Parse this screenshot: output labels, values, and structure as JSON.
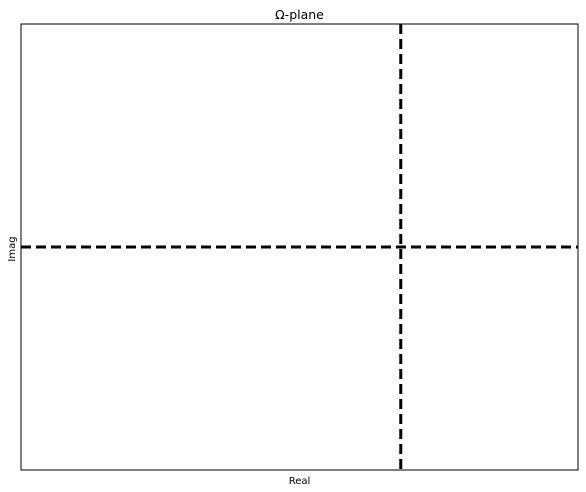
{
  "chart_data": {
    "type": "scatter",
    "title": "Ω-plane",
    "xlabel": "Real",
    "ylabel": "Imag",
    "xticks": [],
    "yticks": [],
    "grid": false,
    "series": [],
    "reference_lines": {
      "vertical_x": 0,
      "horizontal_y": 0,
      "style": "dashed",
      "color": "#000000"
    },
    "xlim": [
      -1.5,
      0.7
    ],
    "ylim": [
      -1,
      1
    ]
  }
}
